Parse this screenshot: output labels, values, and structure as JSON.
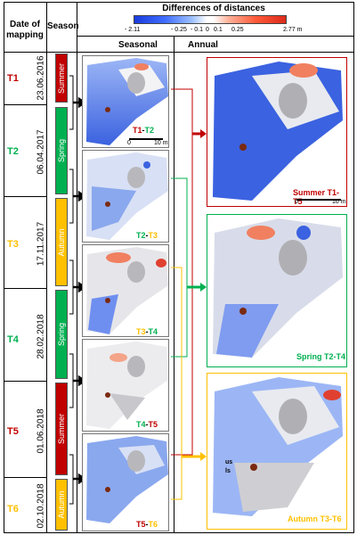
{
  "headers": {
    "date_col": "Date of mapping",
    "season_col": "Season",
    "seasonal": "Seasonal",
    "annual": "Annual",
    "colorbar_title": "Differences of distances"
  },
  "colorbar": {
    "ticks": [
      "- 2.11",
      "- 0.25",
      "- 0.1",
      "0",
      "0.1",
      "0.25",
      "2.77 m"
    ],
    "colors": {
      "neg": "#1a3cdc",
      "mid": "#ffffff",
      "pos": "#dc2a1a"
    }
  },
  "rows": [
    {
      "t": "T1",
      "date": "23.06.2016",
      "color": "#c00000"
    },
    {
      "t": "T2",
      "date": "06.04.2017",
      "color": "#00b050"
    },
    {
      "t": "T3",
      "date": "17.11.2017",
      "color": "#ffc000"
    },
    {
      "t": "T4",
      "date": "28.02.2018",
      "color": "#00b050"
    },
    {
      "t": "T5",
      "date": "01.06.2018",
      "color": "#c00000"
    },
    {
      "t": "T6",
      "date": "02.10.2018",
      "color": "#ffc000"
    }
  ],
  "seasons": [
    {
      "name": "Summer",
      "color": "#c00000"
    },
    {
      "name": "Spring",
      "color": "#00b050"
    },
    {
      "name": "Autumn",
      "color": "#ffc000"
    },
    {
      "name": "Spring",
      "color": "#00b050"
    },
    {
      "name": "Summer",
      "color": "#c00000"
    },
    {
      "name": "Autumn",
      "color": "#ffc000"
    }
  ],
  "seasonal_panels": [
    {
      "a": "T1",
      "b": "T2",
      "ca": "#c00000",
      "cb": "#00b050"
    },
    {
      "a": "T2",
      "b": "T3",
      "ca": "#00b050",
      "cb": "#ffc000"
    },
    {
      "a": "T3",
      "b": "T4",
      "ca": "#ffc000",
      "cb": "#00b050"
    },
    {
      "a": "T4",
      "b": "T5",
      "ca": "#00b050",
      "cb": "#c00000"
    },
    {
      "a": "T5",
      "b": "T6",
      "ca": "#c00000",
      "cb": "#ffc000"
    }
  ],
  "scalebar": {
    "zero": "0",
    "ten": "10 m"
  },
  "annual_panels": [
    {
      "season": "Summer",
      "a": "T1",
      "b": "T5",
      "color": "#c00000"
    },
    {
      "season": "Spring",
      "a": "T2",
      "b": "T4",
      "color": "#00b050"
    },
    {
      "season": "Autumn",
      "a": "T3",
      "b": "T6",
      "color": "#ffc000"
    }
  ],
  "annotations": {
    "us": "us",
    "ls": "ls"
  }
}
